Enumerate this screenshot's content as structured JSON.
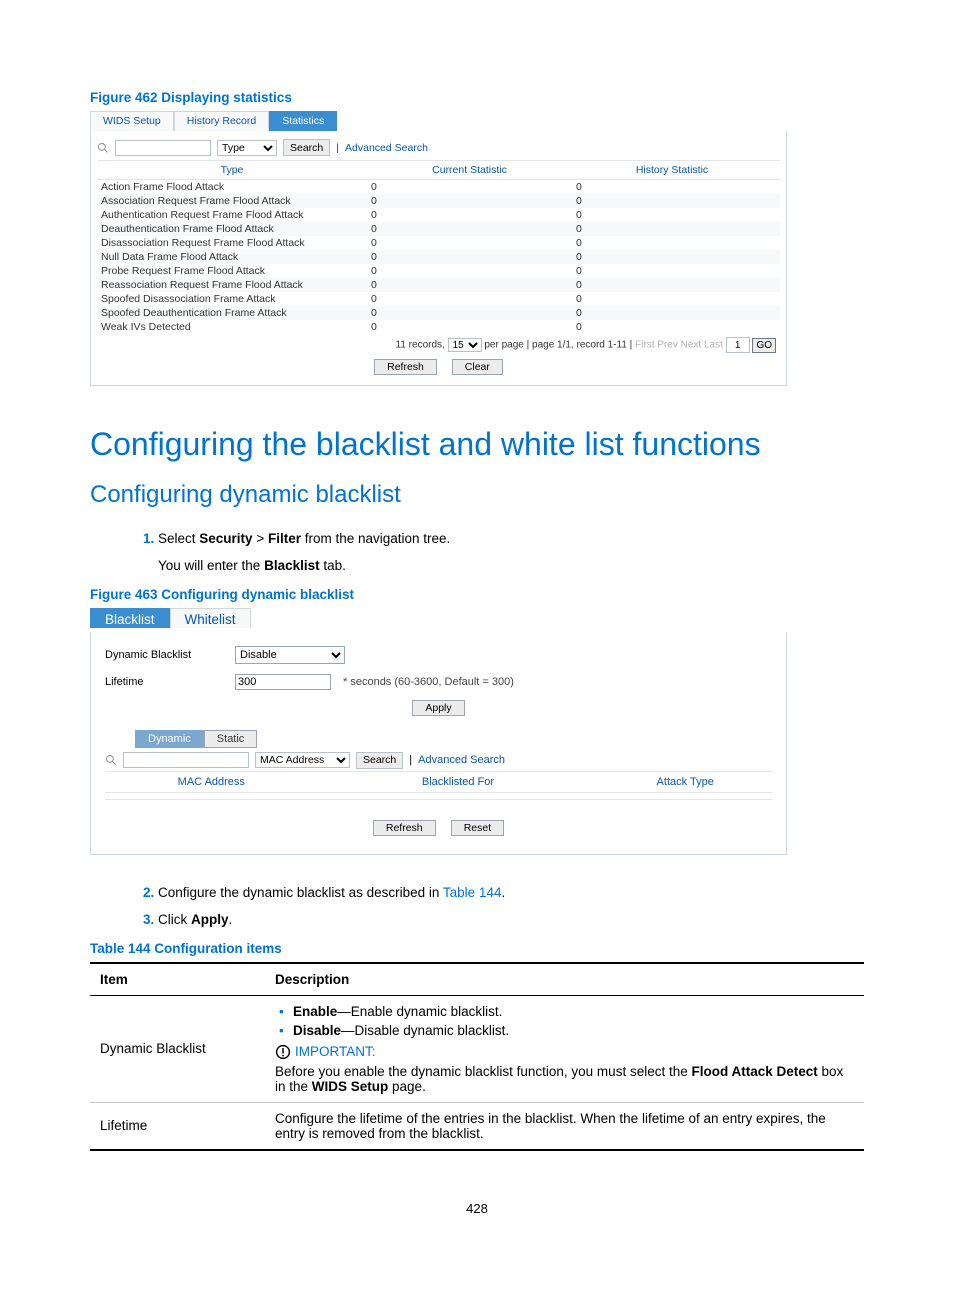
{
  "figure462": {
    "caption": "Figure 462 Displaying statistics",
    "tabs": [
      "WIDS Setup",
      "History Record",
      "Statistics"
    ],
    "active_tab_index": 2,
    "search": {
      "select_options": [
        "Type"
      ],
      "select_value": "Type",
      "search_btn": "Search",
      "advanced": "Advanced Search"
    },
    "columns": [
      "Type",
      "Current Statistic",
      "History Statistic"
    ],
    "rows": [
      [
        "Action Frame Flood Attack",
        "0",
        "0"
      ],
      [
        "Association Request Frame Flood Attack",
        "0",
        "0"
      ],
      [
        "Authentication Request Frame Flood Attack",
        "0",
        "0"
      ],
      [
        "Deauthentication Frame Flood Attack",
        "0",
        "0"
      ],
      [
        "Disassociation Request Frame Flood Attack",
        "0",
        "0"
      ],
      [
        "Null Data Frame Flood Attack",
        "0",
        "0"
      ],
      [
        "Probe Request Frame Flood Attack",
        "0",
        "0"
      ],
      [
        "Reassociation Request Frame Flood Attack",
        "0",
        "0"
      ],
      [
        "Spoofed Disassociation Frame Attack",
        "0",
        "0"
      ],
      [
        "Spoofed Deauthentication Frame Attack",
        "0",
        "0"
      ],
      [
        "Weak IVs Detected",
        "0",
        "0"
      ]
    ],
    "pager": {
      "records_prefix": "11 records,",
      "per_page_value": "15",
      "per_page_suffix": "per page | page 1/1, record 1-11 |",
      "first": "First",
      "prev": "Prev",
      "next": "Next",
      "last": "Last",
      "goto_value": "1",
      "go": "GO"
    },
    "bottom_buttons": [
      "Refresh",
      "Clear"
    ]
  },
  "h1": "Configuring the blacklist and white list functions",
  "h2": "Configuring dynamic blacklist",
  "step1": {
    "prefix": "Select ",
    "bold1": "Security",
    "gt": " > ",
    "bold2": "Filter",
    "suffix": " from the navigation tree.",
    "line2_prefix": "You will enter the ",
    "line2_bold": "Blacklist",
    "line2_suffix": " tab."
  },
  "figure463": {
    "caption": "Figure 463 Configuring dynamic blacklist",
    "tabs": [
      "Blacklist",
      "Whitelist"
    ],
    "active_tab_index": 0,
    "dynamic_label": "Dynamic Blacklist",
    "dynamic_value": "Disable",
    "lifetime_label": "Lifetime",
    "lifetime_value": "300",
    "lifetime_hint": "* seconds (60-3600, Default = 300)",
    "apply_btn": "Apply",
    "subtabs": [
      "Dynamic",
      "Static"
    ],
    "active_subtab_index": 0,
    "search": {
      "select_value": "MAC Address",
      "search_btn": "Search",
      "advanced": "Advanced Search"
    },
    "columns": [
      "MAC Address",
      "Blacklisted For",
      "Attack Type"
    ],
    "bottom_buttons": [
      "Refresh",
      "Reset"
    ]
  },
  "step2": {
    "prefix": "Configure the dynamic blacklist as described in ",
    "link": "Table 144",
    "suffix": "."
  },
  "step3": {
    "prefix": "Click ",
    "bold": "Apply",
    "suffix": "."
  },
  "table144": {
    "caption": "Table 144 Configuration items",
    "head_item": "Item",
    "head_desc": "Description",
    "row1": {
      "item": "Dynamic Blacklist",
      "bullet1_bold": "Enable",
      "bullet1_rest": "—Enable dynamic blacklist.",
      "bullet2_bold": "Disable",
      "bullet2_rest": "—Disable dynamic blacklist.",
      "important": "IMPORTANT:",
      "note_p1": "Before you enable the dynamic blacklist function, you must select the ",
      "note_b1": "Flood Attack Detect",
      "note_p2": " box in the ",
      "note_b2": "WIDS Setup",
      "note_p3": " page."
    },
    "row2": {
      "item": "Lifetime",
      "desc": "Configure the lifetime of the entries in the blacklist. When the lifetime of an entry expires, the entry is removed from the blacklist."
    }
  },
  "pagenum": "428",
  "colors": {
    "accent": "#0073cf",
    "tab_active_bg": "#3a8ecf",
    "link_blue": "#0a57a4"
  }
}
